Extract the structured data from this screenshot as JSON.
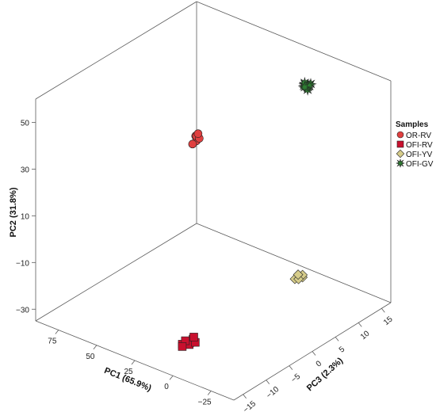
{
  "chart_data": {
    "type": "scatter",
    "title": "",
    "axes": {
      "x": {
        "label": "PC1 (65.9%)",
        "ticks": [
          75,
          50,
          25,
          0,
          -25
        ],
        "range": [
          -40,
          90
        ]
      },
      "y": {
        "label": "PC2 (31.8%)",
        "ticks": [
          50,
          30,
          10,
          -10,
          -30
        ],
        "range": [
          -35,
          60
        ]
      },
      "z": {
        "label": "PC3 (2.3%)",
        "ticks": [
          -15,
          -10,
          -5,
          0,
          5,
          10,
          15
        ],
        "range": [
          -17,
          17
        ]
      }
    },
    "grid": false,
    "legend": {
      "title": "Samples",
      "placement": "right",
      "entries": [
        {
          "name": "OR-RV",
          "marker": "circle",
          "color": "#e04040"
        },
        {
          "name": "OFI-RV",
          "marker": "square",
          "color": "#c8102e"
        },
        {
          "name": "OFI-YV",
          "marker": "diamond",
          "color": "#d6cc8a"
        },
        {
          "name": "OFI-GV",
          "marker": "star",
          "color": "#2e7d32"
        }
      ]
    },
    "series": [
      {
        "name": "OR-RV",
        "points": [
          [
            85,
            5,
            16
          ],
          [
            83,
            4,
            15.5
          ],
          [
            84,
            3,
            15
          ],
          [
            86,
            4,
            16.5
          ],
          [
            82,
            5,
            15.8
          ],
          [
            84,
            6,
            16.2
          ]
        ]
      },
      {
        "name": "OFI-RV",
        "points": [
          [
            10,
            -32,
            -10
          ],
          [
            12,
            -32,
            -11
          ],
          [
            11,
            -32,
            -9
          ],
          [
            9,
            -32,
            -10.5
          ],
          [
            13,
            -32,
            -10
          ],
          [
            10.5,
            -32,
            -11.5
          ],
          [
            8,
            -32,
            -9.5
          ],
          [
            12,
            -32,
            -8.5
          ]
        ]
      },
      {
        "name": "OFI-YV",
        "points": [
          [
            -25,
            -10,
            2
          ],
          [
            -24,
            -10,
            1.5
          ],
          [
            -26,
            -10,
            2.5
          ],
          [
            -24.5,
            -10,
            3
          ],
          [
            -25.5,
            -10,
            1.8
          ],
          [
            -24,
            -9,
            2.2
          ]
        ]
      },
      {
        "name": "OFI-GV",
        "points": [
          [
            10,
            46,
            15.5
          ],
          [
            11,
            47,
            15
          ],
          [
            10.5,
            48,
            15
          ],
          [
            9.5,
            47,
            16
          ],
          [
            10,
            45,
            15.5
          ],
          [
            11,
            48,
            15.2
          ],
          [
            10.5,
            46,
            16
          ],
          [
            9.8,
            47,
            14.8
          ]
        ]
      }
    ]
  }
}
